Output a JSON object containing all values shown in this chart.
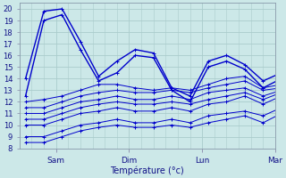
{
  "background_color": "#cce8e8",
  "grid_color": "#aacccc",
  "line_color": "#0000cc",
  "marker_color": "#0000cc",
  "xlabel": "Température (°c)",
  "ylim": [
    8,
    20.5
  ],
  "yticks": [
    8,
    9,
    10,
    11,
    12,
    13,
    14,
    15,
    16,
    17,
    18,
    19,
    20
  ],
  "xlim": [
    -12,
    72
  ],
  "day_ticks": [
    0,
    24,
    48,
    72
  ],
  "day_labels": [
    "Sam",
    "Dim",
    "Lun",
    "Mar"
  ],
  "series": [
    [
      14.0,
      19.8,
      20.0,
      17.2,
      14.2,
      15.5,
      16.5,
      16.2,
      13.2,
      12.5,
      15.5,
      16.0,
      15.2,
      13.8,
      14.5
    ],
    [
      12.5,
      19.0,
      19.5,
      16.5,
      13.8,
      14.5,
      16.0,
      15.8,
      13.0,
      12.0,
      15.0,
      15.5,
      14.8,
      13.2,
      14.0
    ],
    [
      12.0,
      12.2,
      12.5,
      13.0,
      13.5,
      13.5,
      13.2,
      13.0,
      13.2,
      13.0,
      13.5,
      14.0,
      14.2,
      13.2,
      13.5
    ],
    [
      11.5,
      11.5,
      12.0,
      12.5,
      12.8,
      13.0,
      12.8,
      12.8,
      13.0,
      12.8,
      13.2,
      13.5,
      13.8,
      13.0,
      13.2
    ],
    [
      11.0,
      11.0,
      11.5,
      12.0,
      12.2,
      12.5,
      12.2,
      12.2,
      12.5,
      12.2,
      12.8,
      13.0,
      13.2,
      12.5,
      13.0
    ],
    [
      10.5,
      10.5,
      11.0,
      11.5,
      11.8,
      12.0,
      11.8,
      11.8,
      12.0,
      11.8,
      12.2,
      12.5,
      12.8,
      12.2,
      12.8
    ],
    [
      10.0,
      10.0,
      10.5,
      11.0,
      11.2,
      11.5,
      11.2,
      11.2,
      11.5,
      11.2,
      11.8,
      12.0,
      12.5,
      11.8,
      12.5
    ],
    [
      9.0,
      9.0,
      9.5,
      10.0,
      10.2,
      10.5,
      10.2,
      10.2,
      10.5,
      10.2,
      10.8,
      11.0,
      11.2,
      10.8,
      11.5
    ],
    [
      8.5,
      8.5,
      9.0,
      9.5,
      9.8,
      10.0,
      9.8,
      9.8,
      10.0,
      9.8,
      10.2,
      10.5,
      10.8,
      10.2,
      11.0
    ]
  ],
  "n_xminor": 6,
  "xlabel_fontsize": 7,
  "ytick_fontsize": 6,
  "xtick_fontsize": 6.5
}
